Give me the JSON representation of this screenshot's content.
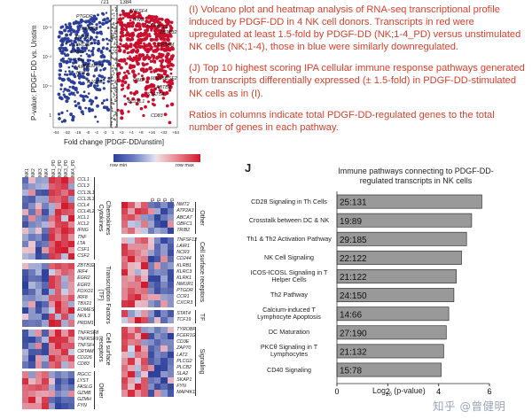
{
  "volcano": {
    "ylabel": "P-value: PDGF-DD vs. Unstim",
    "xlabel": "Fold change [PDGF-DD/unstim]",
    "xticks": [
      "-64",
      "-32",
      "-16",
      "-8",
      "-4",
      "-2",
      "1",
      "+2",
      "+4",
      "+8",
      "+16",
      "+32",
      "+64"
    ],
    "yticks": [
      "10⁻³",
      "10⁻²",
      "10⁻¹",
      "1"
    ],
    "top_counts": [
      "721",
      "1384"
    ],
    "down_genes": [
      "PTGDR",
      "NMUR1",
      "ATP2A3",
      "TYROBP",
      "LAIR1",
      "FYN",
      "LAIR1",
      "TMEM173",
      "IL10RB",
      "NNT2"
    ],
    "up_genes": [
      "TNFSF4",
      "CCL1",
      "IFNG",
      "ZBTB32",
      "CCL3",
      "CRTAM",
      "MIR155",
      "ABTB2",
      "PIM2",
      "CSF2",
      "STAT5A",
      "BCL2L1",
      "CD83"
    ]
  },
  "caption": {
    "p1": "(I) Volcano plot and heatmap analysis of RNA-seq transcriptional profile induced by PDGF-DD in 4 NK cell donors. Transcripts in red were upregulated at least 1.5-fold by PDGF-DD (NK;1-4_PD) versus unstimulated NK cells (NK;1-4), those in blue were similarly downregulated.",
    "p2": "(J) Top 10 highest scoring IPA cellular immune response pathways generated from transcripts differentially expressed (± 1.5-fold) in PDGF-DD-stimulated NK cells as in (I).",
    "p3": "Ratios in columns indicate total PDGF-DD-regulated genes to the total number of genes in each pathway."
  },
  "heatmap": {
    "legend_min": "row min",
    "legend_max": "row max",
    "columns": [
      "NK1",
      "NK2",
      "NK3",
      "NK4",
      "NK1_PD",
      "NK2_PD",
      "NK3_PD",
      "NK4_PD"
    ],
    "left_groups": [
      {
        "label": "Chemokines\nCytokines",
        "genes": [
          "CCL1",
          "CCL3",
          "CCL3L1",
          "CCL3L3",
          "CCL4",
          "CCL4L2",
          "XCL1",
          "XCL2",
          "IFNG",
          "TNF",
          "LTA",
          "CSF1",
          "CSF2"
        ]
      },
      {
        "label": "Transcription Factors\n(TF)",
        "genes": [
          "ZBTB32",
          "IRF4",
          "EGR2",
          "EGR3",
          "FOXO1",
          "IRF8",
          "TBX21",
          "EOMES",
          "NFIL3",
          "PRDM1"
        ]
      },
      {
        "label": "Cell surface\nreceptors",
        "genes": [
          "TNFRSF8",
          "TNFRSF9",
          "TNFSF4",
          "CRTAM",
          "CD226",
          "CD83"
        ]
      },
      {
        "label": "Other",
        "genes": [
          "RGCC",
          "LYST",
          "FASLG",
          "GZMB",
          "GZMH",
          "FYN"
        ]
      }
    ],
    "right_groups": [
      {
        "label": "Other",
        "genes": [
          "NMT2",
          "ATP2A3",
          "ABCA7",
          "OBFC1",
          "TRIB2"
        ]
      },
      {
        "label": "Cell surface receptors",
        "genes": [
          "TNFSF12",
          "LAIR1",
          "NCR3",
          "CD244",
          "KLRB1",
          "KLRC3",
          "KLRK1",
          "NMUR1",
          "PTGDR",
          "CCR1",
          "CXCR3"
        ]
      },
      {
        "label": "TF",
        "genes": [
          "STAT4",
          "TCF19"
        ]
      },
      {
        "label": "Signaling",
        "genes": [
          "TYROBP",
          "FCER1G",
          "CD3E",
          "ZAP70",
          "LAT2",
          "PLCG2",
          "PLCB2",
          "SLA2",
          "SKAP1",
          "FYN",
          "MAP4K1"
        ]
      }
    ]
  },
  "panel_j": {
    "letter": "J",
    "title": "Immune pathways connecting to PDGF-DD-regulated transcripts in NK cells",
    "xlabel": "Log10 (p-value)",
    "xticks": [
      "0",
      "2",
      "4",
      "6"
    ]
  },
  "chart_data": {
    "type": "bar",
    "orientation": "horizontal",
    "title": "Immune pathways connecting to PDGF-DD-regulated transcripts in NK cells",
    "xlabel": "Log10 (p-value)",
    "xlim": [
      0,
      6
    ],
    "categories": [
      "CD28 Signaling in Th Cells",
      "Crosstalk between DC & NK",
      "Th1 & Th2 Activation Pathway",
      "NK Cell Signaling",
      "ICOS-ICOSL Signaling in T Helper Cells",
      "Th2 Pathway",
      "Calcium-induced T Lymphocyte Apoptosis",
      "DC Maturation",
      "PKCθ Signaling in T Lymphocytes",
      "CD40 Signaling"
    ],
    "values": [
      5.7,
      5.3,
      5.1,
      4.9,
      4.7,
      4.6,
      4.4,
      4.3,
      4.2,
      4.1
    ],
    "ratios": [
      "25:131",
      "19:89",
      "29:185",
      "22:122",
      "21:122",
      "24:150",
      "14:66",
      "27:190",
      "21:132",
      "15:78"
    ],
    "bar_color": "#999999"
  },
  "watermark": "知乎 @曾健明"
}
